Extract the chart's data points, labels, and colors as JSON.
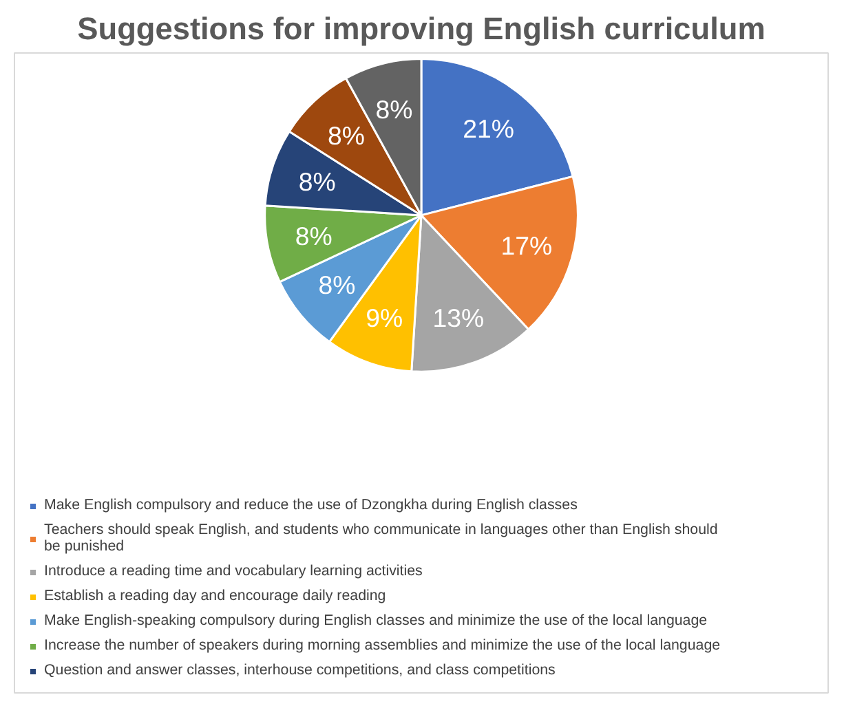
{
  "chart_data": {
    "type": "pie",
    "title": "Suggestions for improving English curriculum",
    "categories": [
      "Make English compulsory and reduce the use of Dzongkha during English classes",
      "Teachers should speak English, and students who communicate in languages other than English should be punished",
      "Introduce a reading time and vocabulary learning activities",
      "Establish a reading day and encourage daily reading",
      "Make English-speaking compulsory during English classes and minimize the use of the local language",
      "Increase the number of speakers during morning assemblies and minimize the use of the local language",
      "Question and answer classes, interhouse competitions, and class competitions",
      null,
      null
    ],
    "values": [
      21,
      17,
      13,
      9,
      8,
      8,
      8,
      8,
      8
    ],
    "value_labels": [
      "21%",
      "17%",
      "13%",
      "9%",
      "8%",
      "8%",
      "8%",
      "8%",
      "8%"
    ],
    "colors": [
      "#4472c4",
      "#ed7d31",
      "#a5a5a5",
      "#ffc000",
      "#5b9bd5",
      "#70ad47",
      "#264478",
      "#9e480e",
      "#636363"
    ],
    "legend": "bottom"
  }
}
